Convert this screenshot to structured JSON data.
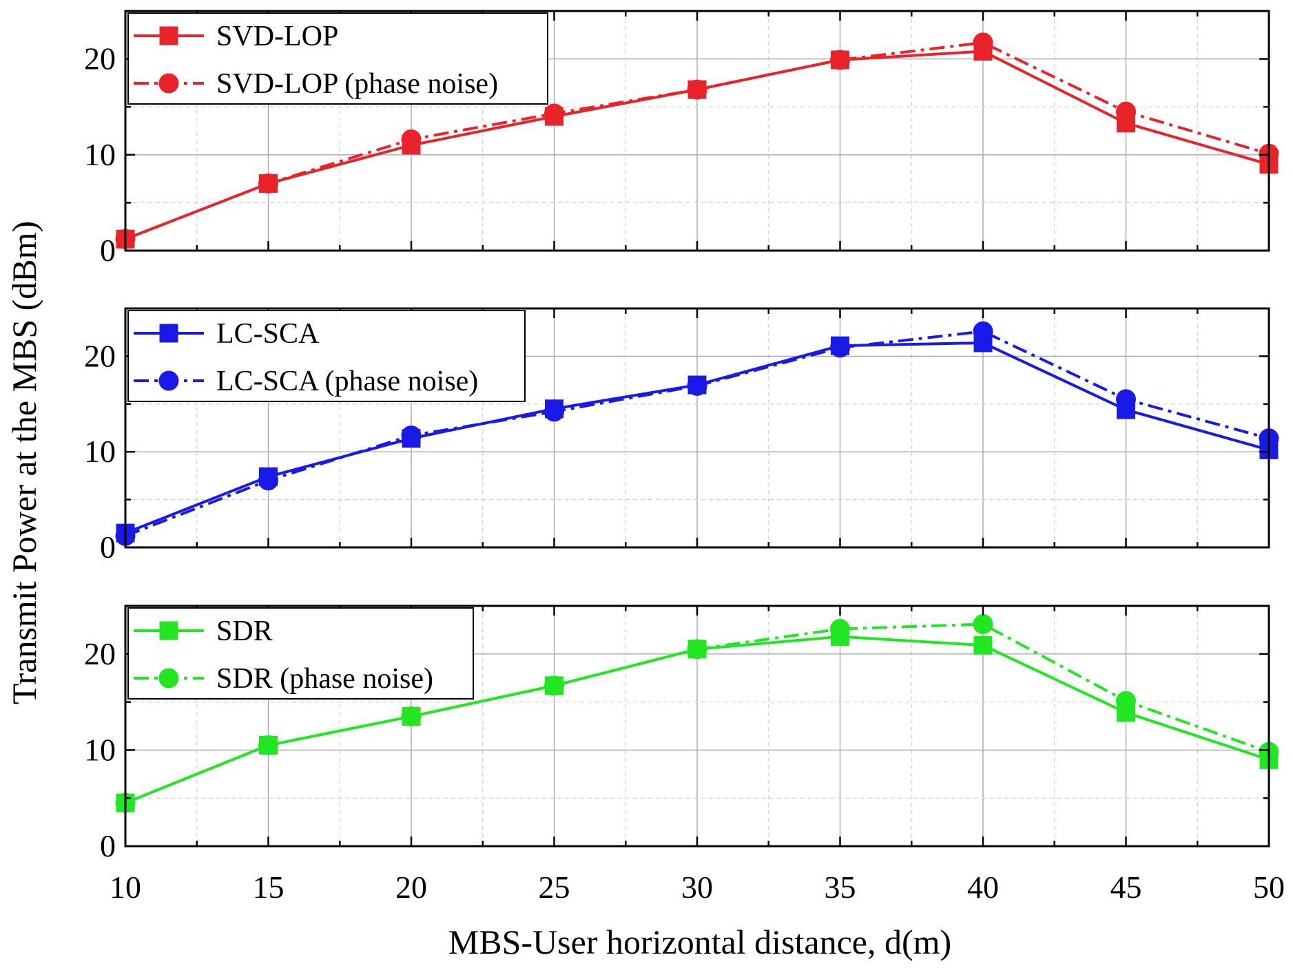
{
  "chart_data": {
    "type": "line",
    "ylabel": "Transmit Power at the MBS (dBm)",
    "xlabel": "MBS-User horizontal distance, d(m)",
    "x": [
      10,
      15,
      20,
      25,
      30,
      35,
      40,
      45,
      50
    ],
    "xlim": [
      10,
      50
    ],
    "xticks": [
      "10",
      "15",
      "20",
      "25",
      "30",
      "35",
      "40",
      "45",
      "50"
    ],
    "grid": true,
    "panels": [
      {
        "ylim": [
          0,
          25
        ],
        "yticks": [
          "0",
          "10",
          "20"
        ],
        "color": "#e8232a",
        "legend_position": "top-left",
        "series": [
          {
            "name": "SVD-LOP",
            "marker": "square",
            "line": "solid",
            "values": [
              1.2,
              7.0,
              11.0,
              14.0,
              16.8,
              19.9,
              20.8,
              13.3,
              9.0
            ]
          },
          {
            "name": "SVD-LOP (phase noise)",
            "marker": "circle",
            "line": "dashdot",
            "values": [
              1.2,
              7.0,
              11.6,
              14.3,
              16.8,
              19.9,
              21.7,
              14.5,
              10.1
            ]
          }
        ]
      },
      {
        "ylim": [
          0,
          25
        ],
        "yticks": [
          "0",
          "10",
          "20"
        ],
        "color": "#1a1ae8",
        "legend_position": "top-left",
        "series": [
          {
            "name": "LC-SCA",
            "marker": "square",
            "line": "solid",
            "values": [
              1.5,
              7.4,
              11.4,
              14.5,
              17.0,
              21.1,
              21.4,
              14.4,
              10.2
            ]
          },
          {
            "name": "LC-SCA (phase noise)",
            "marker": "circle",
            "line": "dashdot",
            "values": [
              1.2,
              7.0,
              11.7,
              14.2,
              16.9,
              20.9,
              22.6,
              15.5,
              11.4
            ]
          }
        ]
      },
      {
        "ylim": [
          0,
          25
        ],
        "yticks": [
          "0",
          "10",
          "20"
        ],
        "color": "#22e622",
        "legend_position": "top-left",
        "series": [
          {
            "name": "SDR",
            "marker": "square",
            "line": "solid",
            "values": [
              4.5,
              10.5,
              13.5,
              16.7,
              20.5,
              21.8,
              20.9,
              13.9,
              9.0
            ]
          },
          {
            "name": "SDR (phase noise)",
            "marker": "circle",
            "line": "dashdot",
            "values": [
              4.5,
              10.5,
              13.5,
              16.7,
              20.5,
              22.6,
              23.1,
              15.1,
              9.8
            ]
          }
        ]
      }
    ]
  }
}
